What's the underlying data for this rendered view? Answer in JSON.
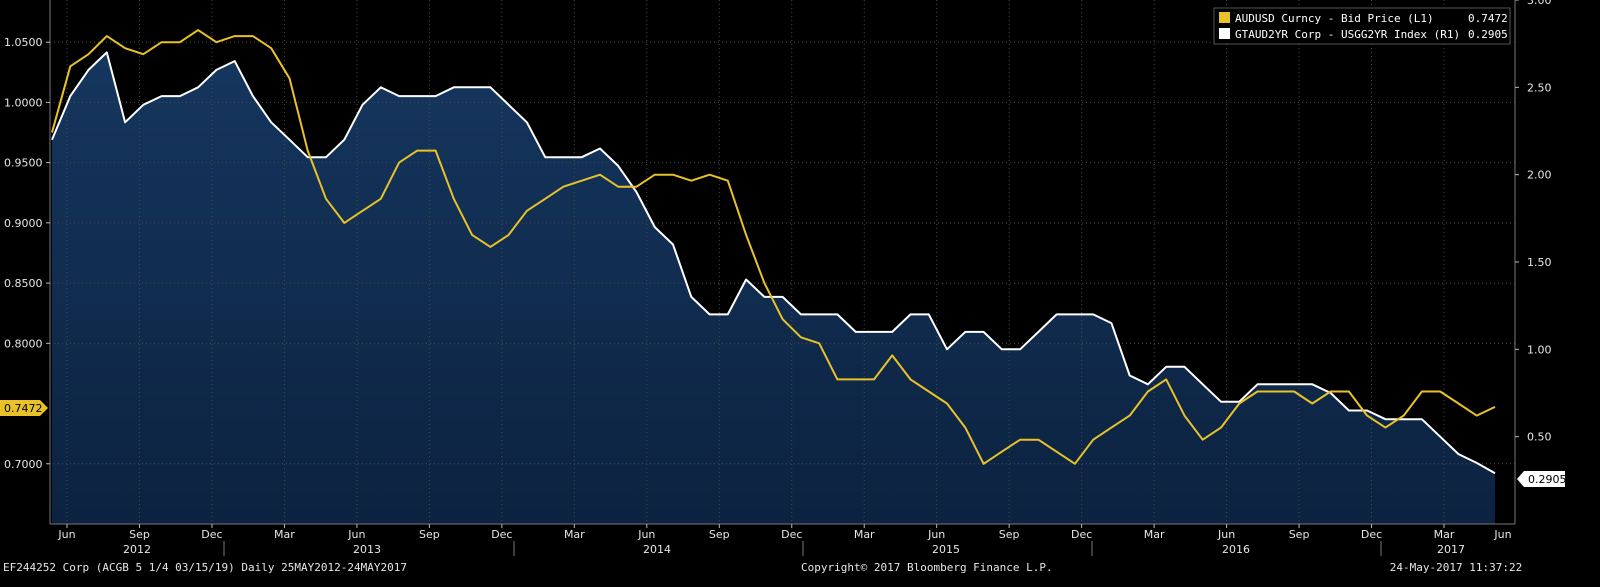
{
  "chart_data": {
    "type": "area",
    "series": [
      {
        "name": "AUDUSD Curncy - Bid Price (L1)",
        "axis": "left",
        "color": "#e8c228",
        "last_value": "0.7472",
        "values": [
          0.975,
          1.03,
          1.04,
          1.055,
          1.045,
          1.04,
          1.05,
          1.05,
          1.06,
          1.05,
          1.055,
          1.055,
          1.045,
          1.02,
          0.96,
          0.92,
          0.9,
          0.91,
          0.92,
          0.95,
          0.96,
          0.96,
          0.92,
          0.89,
          0.88,
          0.89,
          0.91,
          0.92,
          0.93,
          0.935,
          0.94,
          0.93,
          0.93,
          0.94,
          0.94,
          0.935,
          0.94,
          0.935,
          0.89,
          0.85,
          0.82,
          0.805,
          0.8,
          0.77,
          0.77,
          0.77,
          0.79,
          0.77,
          0.76,
          0.75,
          0.73,
          0.7,
          0.71,
          0.72,
          0.72,
          0.71,
          0.7,
          0.72,
          0.73,
          0.74,
          0.76,
          0.77,
          0.74,
          0.72,
          0.73,
          0.75,
          0.76,
          0.76,
          0.76,
          0.75,
          0.76,
          0.76,
          0.74,
          0.73,
          0.74,
          0.76,
          0.76,
          0.75,
          0.74,
          0.7472
        ]
      },
      {
        "name": "GTAUD2YR Corp - USGG2YR Index (R1)",
        "axis": "right",
        "color": "#ffffff",
        "last_value": "0.2905",
        "values": [
          2.2,
          2.45,
          2.6,
          2.7,
          2.3,
          2.4,
          2.45,
          2.45,
          2.5,
          2.6,
          2.65,
          2.45,
          2.3,
          2.2,
          2.1,
          2.1,
          2.2,
          2.4,
          2.5,
          2.45,
          2.45,
          2.45,
          2.5,
          2.5,
          2.5,
          2.4,
          2.3,
          2.1,
          2.1,
          2.1,
          2.15,
          2.05,
          1.9,
          1.7,
          1.6,
          1.3,
          1.2,
          1.2,
          1.4,
          1.3,
          1.3,
          1.2,
          1.2,
          1.2,
          1.1,
          1.1,
          1.1,
          1.2,
          1.2,
          1.0,
          1.1,
          1.1,
          1.0,
          1.0,
          1.1,
          1.2,
          1.2,
          1.2,
          1.15,
          0.85,
          0.8,
          0.9,
          0.9,
          0.8,
          0.7,
          0.7,
          0.8,
          0.8,
          0.8,
          0.8,
          0.75,
          0.65,
          0.65,
          0.6,
          0.6,
          0.6,
          0.5,
          0.4,
          0.35,
          0.29
        ]
      }
    ],
    "x_start_tick": "Jun",
    "x_end_tick": "Jun",
    "x_labels": [
      "Jun",
      "Sep",
      "Dec",
      "Mar",
      "Jun",
      "Sep",
      "Dec",
      "Mar",
      "Jun",
      "Sep",
      "Dec",
      "Mar",
      "Jun",
      "Sep",
      "Dec",
      "Mar",
      "Jun",
      "Sep",
      "Dec",
      "Mar"
    ],
    "years": [
      "2012",
      "2013",
      "2014",
      "2015",
      "2016",
      "2017"
    ],
    "left_axis": {
      "ticks": [
        "1.0500",
        "1.0000",
        "0.9500",
        "0.9000",
        "0.8500",
        "0.8000",
        "0.7000"
      ],
      "ylim": [
        0.65,
        1.085
      ]
    },
    "right_axis": {
      "ticks": [
        "3.00",
        "2.50",
        "2.00",
        "1.50",
        "1.00",
        "0.50"
      ],
      "ylim": [
        0.0,
        3.0
      ]
    },
    "grid": true,
    "legend_position": "top-right"
  },
  "footer": {
    "security": "EF244252 Corp (ACGB 5 1/4 03/15/19)  Daily 25MAY2012-24MAY2017",
    "copyright": "Copyright© 2017 Bloomberg Finance L.P.",
    "timestamp": "24-May-2017 11:37:22"
  }
}
